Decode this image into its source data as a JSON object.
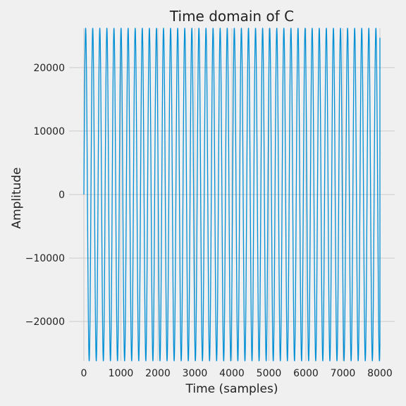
{
  "chart_data": {
    "type": "line",
    "title": "Time domain of C",
    "xlabel": "Time (samples)",
    "ylabel": "Amplitude",
    "xlim": [
      -400,
      8400
    ],
    "ylim": [
      -26200,
      26200
    ],
    "xticks": [
      0,
      1000,
      2000,
      3000,
      4000,
      5000,
      6000,
      7000,
      8000
    ],
    "xtick_labels": [
      "0",
      "1000",
      "2000",
      "3000",
      "4000",
      "5000",
      "6000",
      "7000",
      "8000"
    ],
    "yticks": [
      -20000,
      -10000,
      0,
      10000,
      20000
    ],
    "ytick_labels": [
      "−20000",
      "−10000",
      "0",
      "10000",
      "20000"
    ],
    "grid": true,
    "series": [
      {
        "color": "#008fd5",
        "waveform": "sine",
        "amplitude": 26200,
        "period_samples": 191.3,
        "x_start": 0,
        "x_end": 8000,
        "y_end": 24700
      }
    ]
  }
}
